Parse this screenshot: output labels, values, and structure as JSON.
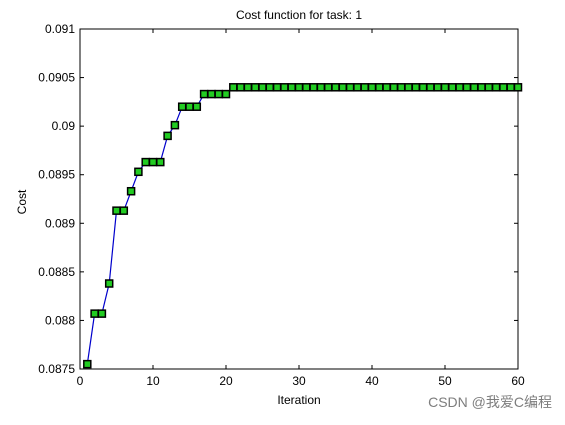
{
  "chart_data": {
    "type": "line",
    "title": "Cost function for task: 1",
    "xlabel": "Iteration",
    "ylabel": "Cost",
    "xlim": [
      0,
      60
    ],
    "ylim": [
      0.0875,
      0.091
    ],
    "xticks": [
      0,
      10,
      20,
      30,
      40,
      50,
      60
    ],
    "xtick_labels": [
      "0",
      "10",
      "20",
      "30",
      "40",
      "50",
      "60"
    ],
    "yticks": [
      0.0875,
      0.088,
      0.0885,
      0.089,
      0.0895,
      0.09,
      0.0905,
      0.091
    ],
    "ytick_labels": [
      "0.0875",
      "0.088",
      "0.0885",
      "0.089",
      "0.0895",
      "0.09",
      "0.0905",
      "0.091"
    ],
    "grid": false,
    "line_color": "#0000cc",
    "marker_face_color": "#22cc22",
    "marker_edge_color": "#000000",
    "x": [
      1,
      2,
      3,
      4,
      5,
      6,
      7,
      8,
      9,
      10,
      11,
      12,
      13,
      14,
      15,
      16,
      17,
      18,
      19,
      20,
      21,
      22,
      23,
      24,
      25,
      26,
      27,
      28,
      29,
      30,
      31,
      32,
      33,
      34,
      35,
      36,
      37,
      38,
      39,
      40,
      41,
      42,
      43,
      44,
      45,
      46,
      47,
      48,
      49,
      50,
      51,
      52,
      53,
      54,
      55,
      56,
      57,
      58,
      59,
      60
    ],
    "y": [
      0.08755,
      0.08807,
      0.08807,
      0.08838,
      0.08913,
      0.08913,
      0.08933,
      0.08953,
      0.08963,
      0.08963,
      0.08963,
      0.0899,
      0.09001,
      0.0902,
      0.0902,
      0.0902,
      0.09033,
      0.09033,
      0.09033,
      0.09033,
      0.0904,
      0.0904,
      0.0904,
      0.0904,
      0.0904,
      0.0904,
      0.0904,
      0.0904,
      0.0904,
      0.0904,
      0.0904,
      0.0904,
      0.0904,
      0.0904,
      0.0904,
      0.0904,
      0.0904,
      0.0904,
      0.0904,
      0.0904,
      0.0904,
      0.0904,
      0.0904,
      0.0904,
      0.0904,
      0.0904,
      0.0904,
      0.0904,
      0.0904,
      0.0904,
      0.0904,
      0.0904,
      0.0904,
      0.0904,
      0.0904,
      0.0904,
      0.0904,
      0.0904,
      0.0904,
      0.0904
    ]
  },
  "watermark": "CSDN @我爱C编程"
}
